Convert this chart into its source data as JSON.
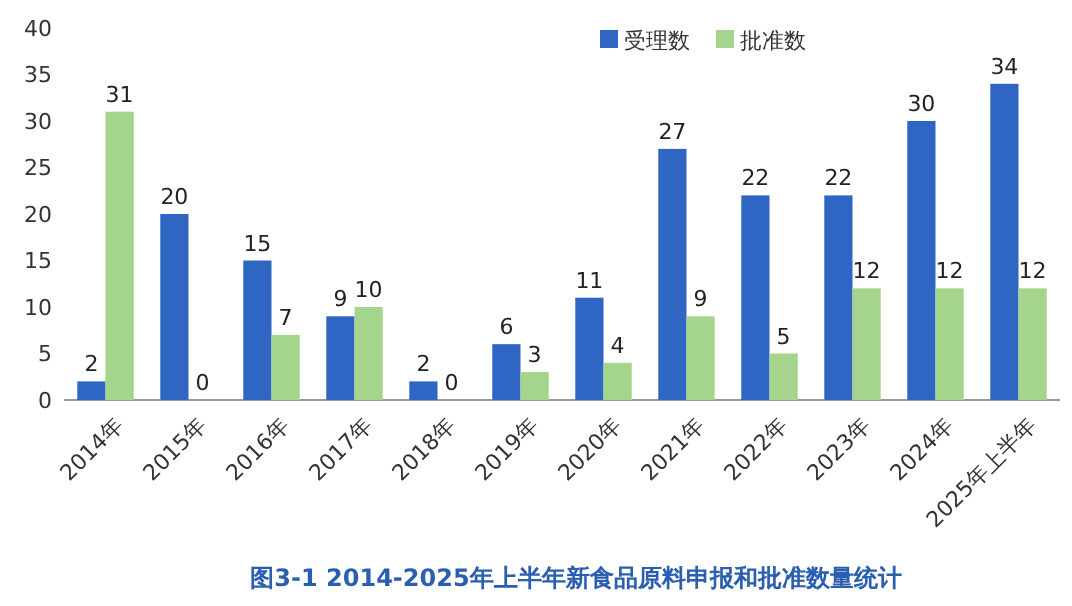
{
  "chart_data": {
    "type": "bar",
    "title": "图3-1 2014-2025年上半年新食品原料申报和批准数量统计",
    "categories": [
      "2014年",
      "2015年",
      "2016年",
      "2017年",
      "2018年",
      "2019年",
      "2020年",
      "2021年",
      "2022年",
      "2023年",
      "2024年",
      "2025年上半年"
    ],
    "series": [
      {
        "name": "受理数",
        "color": "#2f66c4",
        "values": [
          2,
          20,
          15,
          9,
          2,
          6,
          11,
          27,
          22,
          22,
          30,
          34
        ]
      },
      {
        "name": "批准数",
        "color": "#a5d58c",
        "values": [
          31,
          0,
          7,
          10,
          0,
          3,
          4,
          9,
          5,
          12,
          12,
          12
        ]
      }
    ],
    "ylim": [
      0,
      40
    ],
    "yticks": [
      0,
      5,
      10,
      15,
      20,
      25,
      30,
      35,
      40
    ],
    "grid": false,
    "legend": "top",
    "data_labels": true
  }
}
